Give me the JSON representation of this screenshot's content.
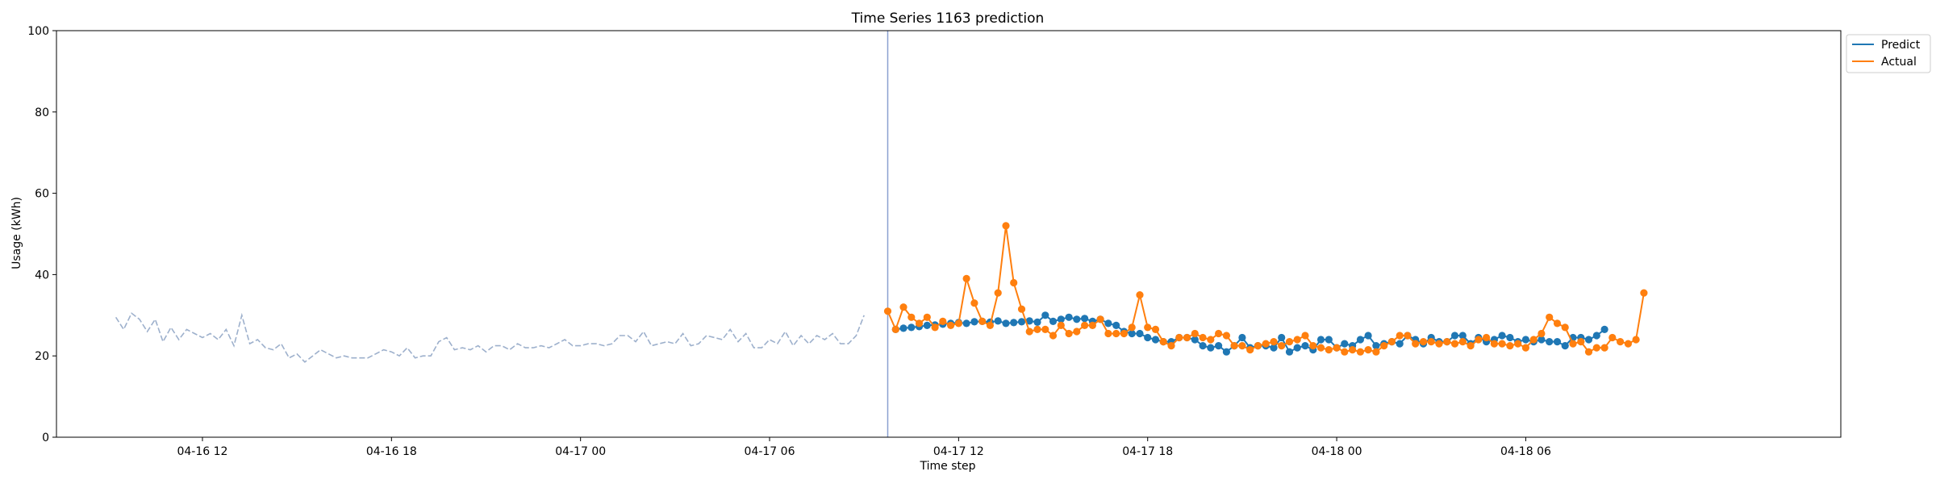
{
  "chart_data": {
    "type": "line",
    "title": "Time Series 1163 prediction",
    "xlabel": "Time step",
    "ylabel": "Usage (kWh)",
    "ylim": [
      0,
      100
    ],
    "yticks": [
      0,
      20,
      40,
      60,
      80,
      100
    ],
    "xlim": [
      "2024-04-16 07:22",
      "2024-04-18 16:00"
    ],
    "xticks": [
      {
        "label": "04-16 12",
        "t": "2024-04-16 12:00"
      },
      {
        "label": "04-16 18",
        "t": "2024-04-16 18:00"
      },
      {
        "label": "04-17 00",
        "t": "2024-04-17 00:00"
      },
      {
        "label": "04-17 06",
        "t": "2024-04-17 06:00"
      },
      {
        "label": "04-17 12",
        "t": "2024-04-17 12:00"
      },
      {
        "label": "04-17 18",
        "t": "2024-04-17 18:00"
      },
      {
        "label": "04-18 00",
        "t": "2024-04-18 00:00"
      },
      {
        "label": "04-18 06",
        "t": "2024-04-18 06:00"
      }
    ],
    "interval_minutes": 15,
    "forecast_start": "2024-04-17 09:45",
    "grid": false,
    "legend_position": "outside top-right",
    "history": {
      "start": "2024-04-16 09:15",
      "color": "#9db0cc",
      "values": [
        29.5,
        26.5,
        30.5,
        29.0,
        26.0,
        29.0,
        23.5,
        27.0,
        24.0,
        26.5,
        25.5,
        24.5,
        25.5,
        24.0,
        26.5,
        22.5,
        30.0,
        23.0,
        24.0,
        22.0,
        21.5,
        23.0,
        19.5,
        20.5,
        18.5,
        20.0,
        21.5,
        20.5,
        19.5,
        20.0,
        19.5,
        19.5,
        19.5,
        20.5,
        21.5,
        21.0,
        20.0,
        22.0,
        19.5,
        20.0,
        20.0,
        23.5,
        24.5,
        21.5,
        22.0,
        21.5,
        22.5,
        21.0,
        22.5,
        22.5,
        21.5,
        23.0,
        22.0,
        22.0,
        22.5,
        22.0,
        23.0,
        24.0,
        22.5,
        22.5,
        23.0,
        23.0,
        22.5,
        23.0,
        25.0,
        25.0,
        23.5,
        26.0,
        22.5,
        23.0,
        23.5,
        23.0,
        25.5,
        22.5,
        23.0,
        25.0,
        24.5,
        24.0,
        26.5,
        23.5,
        25.5,
        22.0,
        22.0,
        24.0,
        23.0,
        26.0,
        22.5,
        25.0,
        23.0,
        25.0,
        24.0,
        25.5,
        23.0,
        23.0,
        25.0,
        30.0
      ]
    },
    "series": [
      {
        "name": "Predict",
        "color": "#1f77b4",
        "start": "2024-04-17 10:00",
        "values": [
          26.5,
          26.8,
          27.0,
          27.2,
          27.5,
          27.6,
          27.8,
          28.0,
          28.2,
          28.0,
          28.4,
          28.5,
          28.3,
          28.6,
          28.0,
          28.2,
          28.4,
          28.6,
          28.3,
          30.0,
          28.5,
          29.0,
          29.5,
          29.0,
          29.2,
          28.5,
          29.0,
          28.0,
          27.5,
          26.0,
          25.5,
          25.5,
          24.5,
          24.0,
          23.5,
          23.5,
          24.5,
          24.5,
          24.0,
          22.5,
          22.0,
          22.5,
          21.0,
          22.5,
          24.5,
          22.0,
          22.5,
          22.5,
          22.0,
          24.5,
          21.0,
          22.0,
          22.5,
          21.5,
          24.0,
          24.0,
          22.0,
          23.0,
          22.5,
          24.0,
          25.0,
          22.5,
          23.0,
          23.5,
          23.0,
          25.0,
          24.0,
          23.0,
          24.5,
          23.5,
          23.5,
          25.0,
          25.0,
          23.0,
          24.5,
          23.5,
          24.0,
          25.0,
          24.5,
          23.5,
          24.0,
          23.5,
          24.0,
          23.5,
          23.5,
          22.5,
          24.5,
          24.5,
          24.0,
          25.0,
          26.5
        ]
      },
      {
        "name": "Actual",
        "color": "#ff7f0e",
        "start": "2024-04-17 09:45",
        "values": [
          31.0,
          26.5,
          32.0,
          29.5,
          28.0,
          29.5,
          27.0,
          28.5,
          27.5,
          28.0,
          39.0,
          33.0,
          28.5,
          27.5,
          35.5,
          52.0,
          38.0,
          31.5,
          26.0,
          26.5,
          26.5,
          25.0,
          27.5,
          25.5,
          26.0,
          27.5,
          27.5,
          29.0,
          25.5,
          25.5,
          25.5,
          27.0,
          35.0,
          27.0,
          26.5,
          23.5,
          22.5,
          24.5,
          24.5,
          25.5,
          24.5,
          24.0,
          25.5,
          25.0,
          22.5,
          22.5,
          21.5,
          22.5,
          23.0,
          23.5,
          22.5,
          23.5,
          24.0,
          25.0,
          22.5,
          22.0,
          21.5,
          22.0,
          21.0,
          21.5,
          21.0,
          21.5,
          21.0,
          22.5,
          23.5,
          25.0,
          25.0,
          23.0,
          23.5,
          23.5,
          23.0,
          23.5,
          23.0,
          23.5,
          22.5,
          24.0,
          24.5,
          23.0,
          23.0,
          22.5,
          23.0,
          22.0,
          24.0,
          25.5,
          29.5,
          28.0,
          27.0,
          23.0,
          23.5,
          21.0,
          22.0,
          22.0,
          24.5,
          23.5,
          23.0,
          24.0,
          35.5
        ]
      }
    ]
  }
}
